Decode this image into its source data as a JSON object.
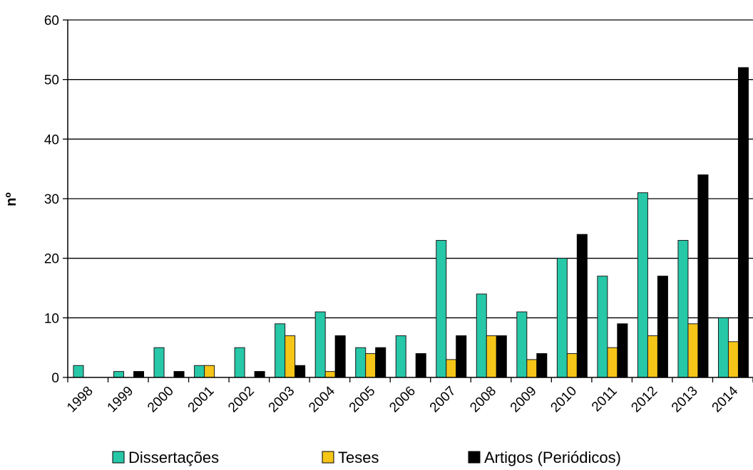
{
  "chart_data": {
    "type": "bar",
    "title": "",
    "xlabel": "",
    "ylabel": "nº",
    "ylim": [
      0,
      60
    ],
    "yticks": [
      0,
      10,
      20,
      30,
      40,
      50,
      60
    ],
    "grid": "horizontal",
    "legend_position": "bottom",
    "categories": [
      "1998",
      "1999",
      "2000",
      "2001",
      "2002",
      "2003",
      "2004",
      "2005",
      "2006",
      "2007",
      "2008",
      "2009",
      "2010",
      "2011",
      "2012",
      "2013",
      "2014"
    ],
    "series": [
      {
        "name": "Dissertações",
        "color": "#26c8a8",
        "values": [
          2,
          1,
          5,
          2,
          5,
          9,
          11,
          5,
          7,
          23,
          14,
          11,
          20,
          17,
          31,
          23,
          10
        ]
      },
      {
        "name": "Teses",
        "color": "#f5c518",
        "values": [
          0,
          0,
          0,
          2,
          0,
          7,
          1,
          4,
          0,
          3,
          7,
          3,
          4,
          5,
          7,
          9,
          6
        ]
      },
      {
        "name": "Artigos (Periódicos)",
        "color": "#000000",
        "values": [
          0,
          1,
          1,
          0,
          1,
          2,
          7,
          5,
          4,
          7,
          7,
          4,
          24,
          9,
          17,
          34,
          52
        ]
      }
    ]
  }
}
